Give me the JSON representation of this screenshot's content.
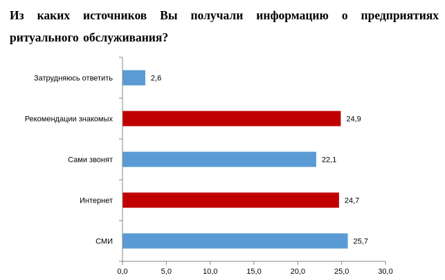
{
  "title": "Из каких источников Вы получали информацию о предприятиях ритуального обслуживания?",
  "chart_data": {
    "type": "bar",
    "orientation": "horizontal",
    "title": "Из каких источников Вы получали информацию о предприятиях ритуального обслуживания?",
    "categories": [
      "Затрудняюсь ответить",
      "Рекомендации знакомых",
      "Сами звонят",
      "Интернет",
      "СМИ"
    ],
    "values": [
      2.6,
      24.9,
      22.1,
      24.7,
      25.7
    ],
    "value_labels": [
      "2,6",
      "24,9",
      "22,1",
      "24,7",
      "25,7"
    ],
    "bar_colors": [
      "#5B9BD5",
      "#C00000",
      "#5B9BD5",
      "#C00000",
      "#5B9BD5"
    ],
    "xlim": [
      0,
      30
    ],
    "x_ticks": [
      0,
      5,
      10,
      15,
      20,
      25,
      30
    ],
    "x_tick_labels": [
      "0,0",
      "5,0",
      "10,0",
      "15,0",
      "20,0",
      "25,0",
      "30,0"
    ],
    "xlabel": "",
    "ylabel": "",
    "grid": false,
    "legend": "none"
  }
}
